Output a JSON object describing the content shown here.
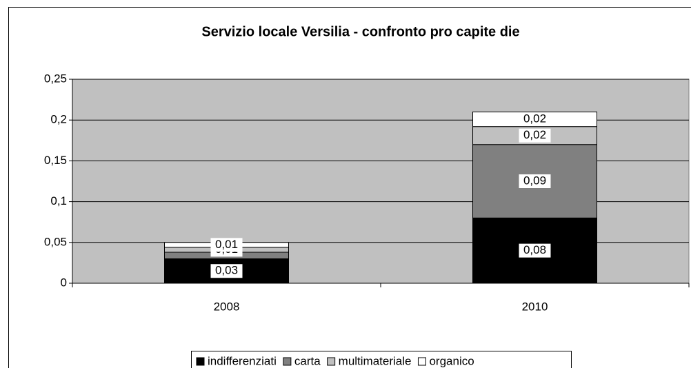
{
  "chart_data": {
    "type": "stacked_bar",
    "title": "Servizio locale Versilia - confronto pro capite die",
    "categories": [
      "2008",
      "2010"
    ],
    "series": [
      {
        "name": "indifferenziati",
        "color": "#000000",
        "values": [
          0.03,
          0.08
        ],
        "value_labels": [
          "0,03",
          "0,08"
        ]
      },
      {
        "name": "carta",
        "color": "#808080",
        "values": [
          0.008,
          0.09
        ],
        "value_labels": [
          "0,01",
          "0,09"
        ]
      },
      {
        "name": "multimateriale",
        "color": "#c0c0c0",
        "values": [
          0.006,
          0.022
        ],
        "value_labels": [
          "0,01",
          "0,02"
        ]
      },
      {
        "name": "organico",
        "color": "#ffffff",
        "values": [
          0.006,
          0.018
        ],
        "value_labels": [
          "0,01",
          "0,02"
        ]
      }
    ],
    "ylim": [
      0,
      0.25
    ],
    "yticks": [
      0,
      {
        "value": 0.05,
        "label": "0,05"
      },
      {
        "value": 0.1,
        "label": "0,1"
      },
      {
        "value": 0.15,
        "label": "0,15"
      },
      {
        "value": 0.2,
        "label": "0,2"
      },
      {
        "value": 0.25,
        "label": "0,25"
      }
    ],
    "grid": true,
    "plot_background": "#c0c0c0",
    "legend": "bottom"
  }
}
